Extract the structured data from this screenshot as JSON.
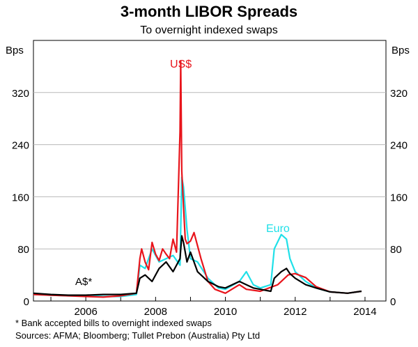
{
  "chart_data": {
    "type": "line",
    "title": "3-month LIBOR Spreads",
    "subtitle": "To overnight indexed swaps",
    "ylabel_left": "Bps",
    "ylabel_right": "Bps",
    "xlim": [
      2004.5,
      2014.6
    ],
    "ylim": [
      0,
      400
    ],
    "yticks": [
      0,
      80,
      160,
      240,
      320
    ],
    "xticks": [
      2006,
      2008,
      2010,
      2012,
      2014
    ],
    "series": [
      {
        "name": "US$",
        "color": "#e8141b",
        "x": [
          2004.5,
          2005.0,
          2005.5,
          2006.0,
          2006.5,
          2007.0,
          2007.45,
          2007.55,
          2007.6,
          2007.7,
          2007.8,
          2007.9,
          2008.0,
          2008.1,
          2008.2,
          2008.3,
          2008.4,
          2008.5,
          2008.6,
          2008.7,
          2008.72,
          2008.75,
          2008.8,
          2008.85,
          2008.9,
          2009.0,
          2009.1,
          2009.3,
          2009.5,
          2009.7,
          2010.0,
          2010.4,
          2010.6,
          2011.0,
          2011.5,
          2011.8,
          2012.0,
          2012.3,
          2012.6,
          2013.0,
          2013.5,
          2013.9
        ],
        "values": [
          10,
          9,
          8,
          7,
          6,
          8,
          12,
          65,
          80,
          60,
          48,
          90,
          72,
          62,
          80,
          72,
          65,
          95,
          75,
          260,
          368,
          200,
          145,
          95,
          88,
          92,
          105,
          65,
          30,
          18,
          12,
          25,
          18,
          15,
          25,
          40,
          42,
          36,
          22,
          14,
          12,
          15
        ]
      },
      {
        "name": "Euro",
        "color": "#1fe0e8",
        "x": [
          2004.5,
          2005.0,
          2005.5,
          2006.0,
          2006.5,
          2007.0,
          2007.45,
          2007.55,
          2007.7,
          2007.9,
          2008.1,
          2008.3,
          2008.5,
          2008.7,
          2008.75,
          2008.8,
          2008.9,
          2009.0,
          2009.2,
          2009.5,
          2009.8,
          2010.0,
          2010.4,
          2010.6,
          2010.8,
          2011.0,
          2011.3,
          2011.4,
          2011.6,
          2011.75,
          2011.85,
          2012.0,
          2012.3,
          2012.6,
          2013.0,
          2013.5,
          2013.9
        ],
        "values": [
          10,
          9,
          8,
          8,
          7,
          7,
          10,
          55,
          50,
          80,
          60,
          65,
          70,
          55,
          190,
          175,
          110,
          65,
          60,
          35,
          20,
          18,
          30,
          45,
          25,
          20,
          25,
          80,
          102,
          95,
          65,
          45,
          30,
          20,
          14,
          12,
          15
        ]
      },
      {
        "name": "A$*",
        "color": "#000000",
        "x": [
          2004.5,
          2005.0,
          2005.5,
          2006.0,
          2006.5,
          2007.0,
          2007.45,
          2007.55,
          2007.7,
          2007.9,
          2008.1,
          2008.3,
          2008.5,
          2008.7,
          2008.75,
          2008.8,
          2008.9,
          2009.0,
          2009.2,
          2009.5,
          2009.8,
          2010.0,
          2010.4,
          2010.6,
          2010.8,
          2011.0,
          2011.3,
          2011.4,
          2011.6,
          2011.75,
          2011.85,
          2012.0,
          2012.3,
          2012.6,
          2013.0,
          2013.5,
          2013.9
        ],
        "values": [
          12,
          10,
          9,
          9,
          10,
          10,
          12,
          35,
          40,
          30,
          50,
          60,
          45,
          65,
          100,
          90,
          60,
          75,
          45,
          30,
          22,
          20,
          30,
          25,
          20,
          18,
          15,
          35,
          45,
          50,
          42,
          35,
          25,
          20,
          14,
          12,
          15
        ]
      }
    ],
    "annotations": [
      {
        "text": "US$",
        "series": "US$"
      },
      {
        "text": "Euro",
        "series": "Euro"
      },
      {
        "text": "A$*",
        "series": "A$*"
      }
    ]
  },
  "footnote": "*    Bank accepted bills to overnight indexed swaps",
  "sources": "Sources: AFMA; Bloomberg; Tullet Prebon (Australia) Pty Ltd"
}
